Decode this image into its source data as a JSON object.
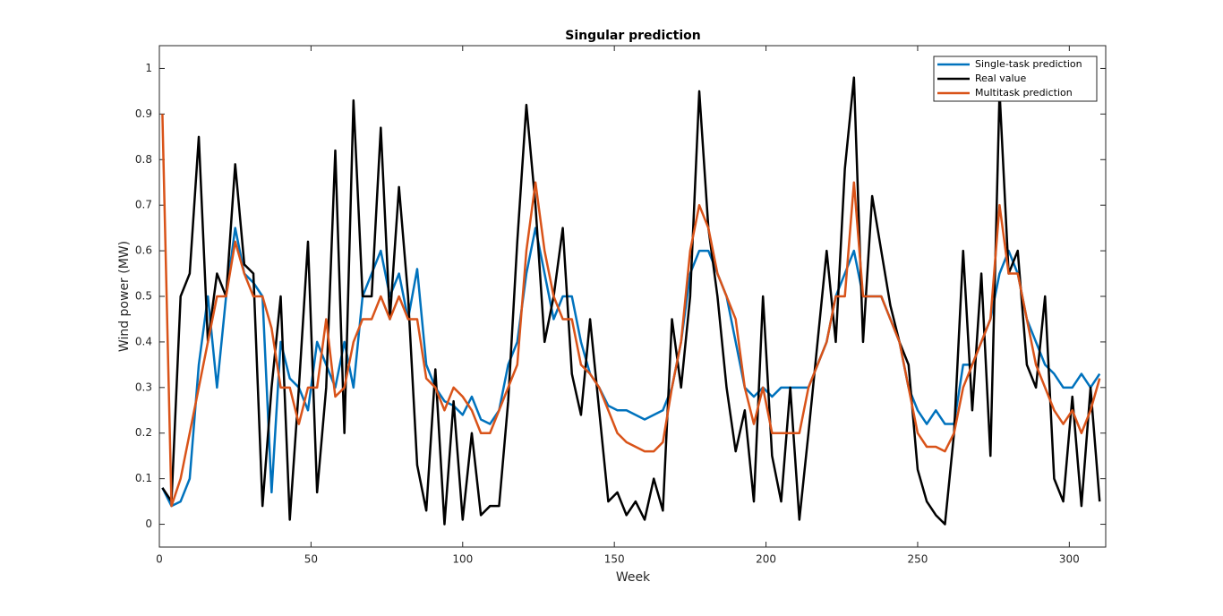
{
  "chart_data": {
    "type": "line",
    "title": "Singular prediction",
    "x_label": "Week",
    "y_label": "Wind power (MW)",
    "x": [
      1,
      4,
      7,
      10,
      13,
      16,
      19,
      22,
      25,
      28,
      31,
      34,
      37,
      40,
      43,
      46,
      49,
      52,
      55,
      58,
      61,
      64,
      67,
      70,
      73,
      76,
      79,
      82,
      85,
      88,
      91,
      94,
      97,
      100,
      103,
      106,
      109,
      112,
      115,
      118,
      121,
      124,
      127,
      130,
      133,
      136,
      139,
      142,
      145,
      148,
      151,
      154,
      157,
      160,
      163,
      166,
      169,
      172,
      175,
      178,
      181,
      184,
      187,
      190,
      193,
      196,
      199,
      202,
      205,
      208,
      211,
      214,
      217,
      220,
      223,
      226,
      229,
      232,
      235,
      238,
      241,
      244,
      247,
      250,
      253,
      256,
      259,
      262,
      265,
      268,
      271,
      274,
      277,
      280,
      283,
      286,
      289,
      292,
      295,
      298,
      301,
      304,
      307,
      310
    ],
    "series": [
      {
        "name": "Single-task prediction",
        "color": "#0072bd",
        "values": [
          0.08,
          0.04,
          0.05,
          0.1,
          0.35,
          0.5,
          0.3,
          0.5,
          0.65,
          0.55,
          0.53,
          0.5,
          0.07,
          0.4,
          0.32,
          0.3,
          0.25,
          0.4,
          0.35,
          0.3,
          0.4,
          0.3,
          0.5,
          0.55,
          0.6,
          0.5,
          0.55,
          0.45,
          0.56,
          0.35,
          0.3,
          0.27,
          0.26,
          0.24,
          0.28,
          0.23,
          0.22,
          0.25,
          0.35,
          0.4,
          0.55,
          0.65,
          0.55,
          0.45,
          0.5,
          0.5,
          0.4,
          0.33,
          0.3,
          0.26,
          0.25,
          0.25,
          0.24,
          0.23,
          0.24,
          0.25,
          0.3,
          0.4,
          0.55,
          0.6,
          0.6,
          0.55,
          0.5,
          0.4,
          0.3,
          0.28,
          0.3,
          0.28,
          0.3,
          0.3,
          0.3,
          0.3,
          0.35,
          0.4,
          0.5,
          0.55,
          0.6,
          0.5,
          0.5,
          0.5,
          0.45,
          0.4,
          0.3,
          0.25,
          0.22,
          0.25,
          0.22,
          0.22,
          0.35,
          0.35,
          0.4,
          0.45,
          0.55,
          0.6,
          0.55,
          0.45,
          0.4,
          0.35,
          0.33,
          0.3,
          0.3,
          0.33,
          0.3,
          0.33
        ]
      },
      {
        "name": "Real value",
        "color": "#000000",
        "values": [
          0.08,
          0.05,
          0.5,
          0.55,
          0.85,
          0.4,
          0.55,
          0.5,
          0.79,
          0.57,
          0.55,
          0.04,
          0.3,
          0.5,
          0.01,
          0.3,
          0.62,
          0.07,
          0.3,
          0.82,
          0.2,
          0.93,
          0.5,
          0.5,
          0.87,
          0.45,
          0.74,
          0.5,
          0.13,
          0.03,
          0.34,
          0.0,
          0.27,
          0.01,
          0.2,
          0.02,
          0.04,
          0.04,
          0.27,
          0.62,
          0.92,
          0.7,
          0.4,
          0.5,
          0.65,
          0.33,
          0.24,
          0.45,
          0.25,
          0.05,
          0.07,
          0.02,
          0.05,
          0.01,
          0.1,
          0.03,
          0.45,
          0.3,
          0.5,
          0.95,
          0.65,
          0.5,
          0.3,
          0.16,
          0.25,
          0.05,
          0.5,
          0.15,
          0.05,
          0.3,
          0.01,
          0.2,
          0.4,
          0.6,
          0.4,
          0.78,
          0.98,
          0.4,
          0.72,
          0.6,
          0.48,
          0.4,
          0.35,
          0.12,
          0.05,
          0.02,
          0.0,
          0.2,
          0.6,
          0.25,
          0.55,
          0.15,
          0.95,
          0.55,
          0.6,
          0.35,
          0.3,
          0.5,
          0.1,
          0.05,
          0.28,
          0.04,
          0.3,
          0.05
        ]
      },
      {
        "name": "Multitask prediction",
        "color": "#d95319",
        "values": [
          0.9,
          0.04,
          0.1,
          0.2,
          0.3,
          0.4,
          0.5,
          0.5,
          0.62,
          0.55,
          0.5,
          0.5,
          0.43,
          0.3,
          0.3,
          0.22,
          0.3,
          0.3,
          0.45,
          0.28,
          0.3,
          0.4,
          0.45,
          0.45,
          0.5,
          0.45,
          0.5,
          0.45,
          0.45,
          0.32,
          0.3,
          0.25,
          0.3,
          0.28,
          0.25,
          0.2,
          0.2,
          0.25,
          0.3,
          0.35,
          0.6,
          0.75,
          0.6,
          0.5,
          0.45,
          0.45,
          0.35,
          0.33,
          0.3,
          0.25,
          0.2,
          0.18,
          0.17,
          0.16,
          0.16,
          0.18,
          0.3,
          0.4,
          0.6,
          0.7,
          0.65,
          0.55,
          0.5,
          0.45,
          0.3,
          0.22,
          0.3,
          0.2,
          0.2,
          0.2,
          0.2,
          0.3,
          0.35,
          0.4,
          0.5,
          0.5,
          0.75,
          0.5,
          0.5,
          0.5,
          0.45,
          0.4,
          0.3,
          0.2,
          0.17,
          0.17,
          0.16,
          0.2,
          0.3,
          0.35,
          0.4,
          0.45,
          0.7,
          0.55,
          0.55,
          0.45,
          0.35,
          0.3,
          0.25,
          0.22,
          0.25,
          0.2,
          0.25,
          0.32
        ]
      }
    ],
    "xlim": [
      0,
      312
    ],
    "ylim": [
      -0.05,
      1.05
    ],
    "xticks": [
      0,
      50,
      100,
      150,
      200,
      250,
      300
    ],
    "yticks": [
      0,
      0.1,
      0.2,
      0.3,
      0.4,
      0.5,
      0.6,
      0.7,
      0.8,
      0.9,
      1
    ],
    "legend": "top-right"
  }
}
